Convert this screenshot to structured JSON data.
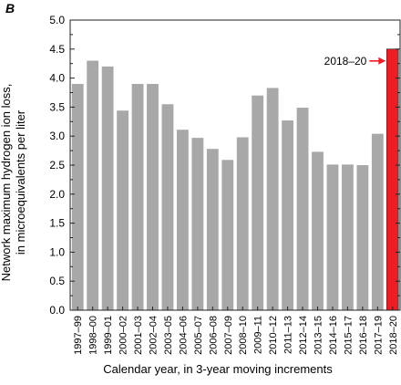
{
  "panel_label": "B",
  "chart_data": {
    "type": "bar",
    "ylabel_line1": "Network maximum hydrogen ion loss,",
    "ylabel_line2": "in microequivalents per liter",
    "xlabel": "Calendar year, in 3-year moving increments",
    "categories": [
      "1997–99",
      "1998–00",
      "1999–01",
      "2000–02",
      "2001–03",
      "2002–04",
      "2003–05",
      "2004–06",
      "2005–07",
      "2006–08",
      "2007–09",
      "2008–10",
      "2009–11",
      "2010–12",
      "2011–13",
      "2012–14",
      "2013–15",
      "2014–16",
      "2015–17",
      "2016–18",
      "2017–19",
      "2018–20"
    ],
    "values": [
      3.9,
      4.3,
      4.2,
      3.44,
      3.9,
      3.9,
      3.55,
      3.11,
      2.97,
      2.78,
      2.59,
      2.98,
      3.7,
      3.83,
      3.27,
      3.49,
      2.73,
      2.51,
      2.51,
      2.5,
      3.04,
      4.5
    ],
    "ylim": [
      0,
      5.0
    ],
    "yticks": [
      "0.0",
      "0.5",
      "1.0",
      "1.5",
      "2.0",
      "2.5",
      "3.0",
      "3.5",
      "4.0",
      "4.5",
      "5.0"
    ],
    "grid": false,
    "colors": {
      "bar": "#a8a8a8",
      "highlight": "#ee1c25",
      "arrow": "#ee1c25"
    },
    "annotation": {
      "text": "2018–20",
      "target": "2018–20"
    }
  }
}
